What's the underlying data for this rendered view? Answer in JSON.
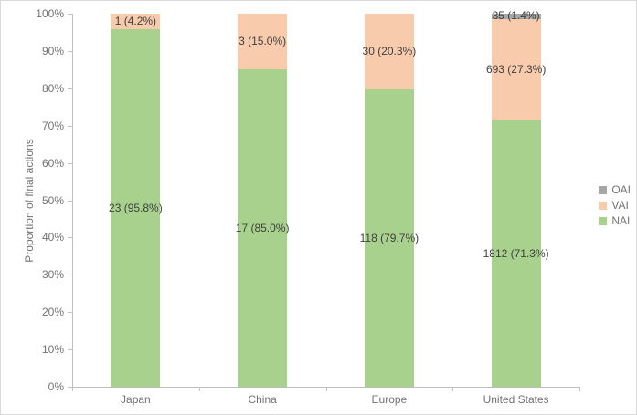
{
  "chart_data": {
    "type": "bar",
    "stacked": true,
    "title": "",
    "xlabel": "",
    "ylabel": "Proportion of final actions",
    "categories": [
      "Japan",
      "China",
      "Europe",
      "United States"
    ],
    "series": [
      {
        "name": "NAI",
        "color": "#a9d18e",
        "values": [
          95.8,
          85.0,
          79.7,
          71.3
        ],
        "counts": [
          23,
          17,
          118,
          1812
        ],
        "labels": [
          "23 (95.8%)",
          "17 (85.0%)",
          "118 (79.7%)",
          "1812 (71.3%)"
        ]
      },
      {
        "name": "VAI",
        "color": "#f8cbad",
        "values": [
          4.2,
          15.0,
          20.3,
          27.3
        ],
        "counts": [
          1,
          3,
          30,
          693
        ],
        "labels": [
          "1 (4.2%)",
          "3 (15.0%)",
          "30 (20.3%)",
          "693 (27.3%)"
        ]
      },
      {
        "name": "OAI",
        "color": "#a6a6a6",
        "values": [
          0,
          0,
          0,
          1.4
        ],
        "counts": [
          0,
          0,
          0,
          35
        ],
        "labels": [
          "",
          "",
          "",
          "35 (1.4%)"
        ]
      }
    ],
    "yticks": [
      "0%",
      "10%",
      "20%",
      "30%",
      "40%",
      "50%",
      "60%",
      "70%",
      "80%",
      "90%",
      "100%"
    ],
    "ylim": [
      0,
      100
    ],
    "grid": false,
    "legend_position": "right",
    "legend": [
      {
        "label": "OAI",
        "color": "#a6a6a6"
      },
      {
        "label": "VAI",
        "color": "#f8cbad"
      },
      {
        "label": "NAI",
        "color": "#a9d18e"
      }
    ]
  }
}
